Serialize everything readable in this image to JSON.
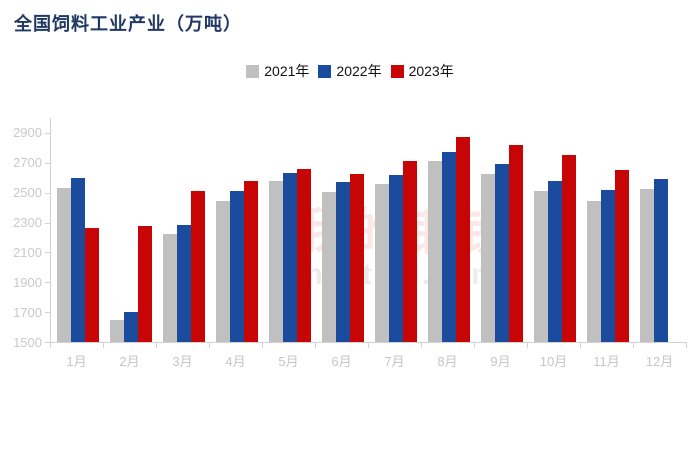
{
  "title": "全国饲料工业产业（万吨）",
  "watermark": {
    "cn": "我的钢铁",
    "en": "mysteel.com"
  },
  "colors": {
    "title": "#1f3864",
    "series_2021": "#c0c0c0",
    "series_2022": "#1a4b9c",
    "series_2023": "#c80505",
    "axis_line": "#d2d2d2",
    "tick_label": "#c9c9c9"
  },
  "chart_data": {
    "type": "bar",
    "title": "全国饲料工业产业（万吨）",
    "categories": [
      "1月",
      "2月",
      "3月",
      "4月",
      "5月",
      "6月",
      "7月",
      "8月",
      "9月",
      "10月",
      "11月",
      "12月"
    ],
    "series": [
      {
        "name": "2021年",
        "color": "#c0c0c0",
        "values": [
          2530,
          1645,
          2220,
          2445,
          2580,
          2505,
          2560,
          2715,
          2625,
          2510,
          2445,
          2525
        ]
      },
      {
        "name": "2022年",
        "color": "#1a4b9c",
        "values": [
          2595,
          1700,
          2285,
          2510,
          2635,
          2570,
          2620,
          2775,
          2695,
          2580,
          2515,
          2590
        ]
      },
      {
        "name": "2023年",
        "color": "#c80505",
        "values": [
          2265,
          2275,
          2510,
          2580,
          2660,
          2625,
          2710,
          2870,
          2820,
          2755,
          2655,
          null
        ]
      }
    ],
    "ylim": [
      1500,
      3000
    ],
    "yticks": [
      1500,
      1700,
      1900,
      2100,
      2300,
      2500,
      2700,
      2900
    ],
    "grid": false,
    "legend_position": "top-center",
    "xlabel": "",
    "ylabel": ""
  }
}
